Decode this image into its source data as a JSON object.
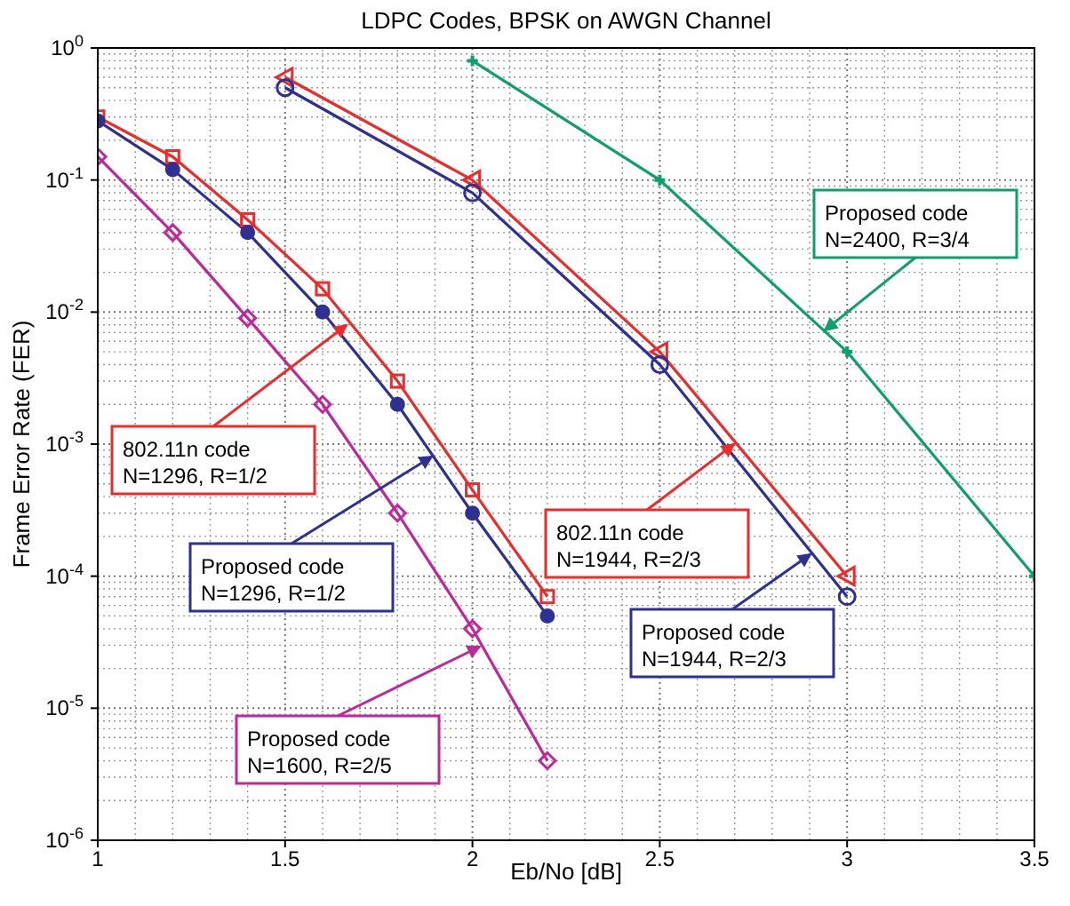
{
  "chart_data": {
    "type": "line",
    "title": "LDPC Codes, BPSK on AWGN Channel",
    "xlabel": "Eb/No [dB]",
    "ylabel": "Frame Error Rate (FER)",
    "log": "y",
    "grid": true,
    "xlim": [
      1,
      3.5
    ],
    "xticks": [
      1,
      1.5,
      2,
      2.5,
      3,
      3.5
    ],
    "ylim": [
      1e-06,
      1
    ],
    "yticks": [
      {
        "value": 1e-06,
        "label": "10$^{-6}$"
      },
      {
        "value": 1e-05,
        "label": "10$^{-5}$"
      },
      {
        "value": 0.0001,
        "label": "10$^{-4}$"
      },
      {
        "value": 0.001,
        "label": "10$^{-3}$"
      },
      {
        "value": 0.01,
        "label": "10$^{-2}$"
      },
      {
        "value": 0.1,
        "label": "10$^{-1}$"
      },
      {
        "value": 1,
        "label": "10$^{0}$"
      }
    ],
    "series": [
      {
        "name": "802.11n code\nN=1296, R=1/2",
        "color": "#ee2a2a",
        "marker": "square",
        "x": [
          1,
          1.2,
          1.4,
          1.6,
          1.8,
          2,
          2.2
        ],
        "values": [
          0.3,
          0.15,
          0.05,
          0.015,
          0.003,
          0.00045,
          7e-05
        ]
      },
      {
        "name": "Proposed code\nN=1296, R=1/2",
        "color": "#2e3192",
        "marker": "circle",
        "x": [
          1,
          1.2,
          1.4,
          1.6,
          1.8,
          2,
          2.2
        ],
        "values": [
          0.28,
          0.12,
          0.04,
          0.01,
          0.002,
          0.0003,
          5e-05
        ]
      },
      {
        "name": "Proposed code\nN=1600, R=2/5",
        "color": "#c0279b",
        "marker": "diamond",
        "x": [
          1,
          1.2,
          1.4,
          1.6,
          1.8,
          2,
          2.2
        ],
        "values": [
          0.15,
          0.04,
          0.009,
          0.002,
          0.0003,
          4e-05,
          4e-06
        ]
      },
      {
        "name": "802.11n code\nN=1944, R=2/3",
        "color": "#ee2a2a",
        "marker": "triangle",
        "x": [
          1.5,
          2,
          2.5,
          3
        ],
        "values": [
          0.6,
          0.1,
          0.005,
          0.0001
        ]
      },
      {
        "name": "Proposed code\nN=1944, R=2/3",
        "color": "#2e3192",
        "marker": "circle",
        "x": [
          1.5,
          2,
          2.5,
          3
        ],
        "values": [
          0.5,
          0.08,
          0.004,
          7e-05
        ]
      },
      {
        "name": "Proposed code\nN=2400, R=3/4",
        "color": "#0e9f6e",
        "marker": "cross",
        "x": [
          2,
          2.5,
          3,
          3.5
        ],
        "values": [
          0.8,
          0.1,
          0.005,
          0.0001
        ]
      }
    ]
  }
}
